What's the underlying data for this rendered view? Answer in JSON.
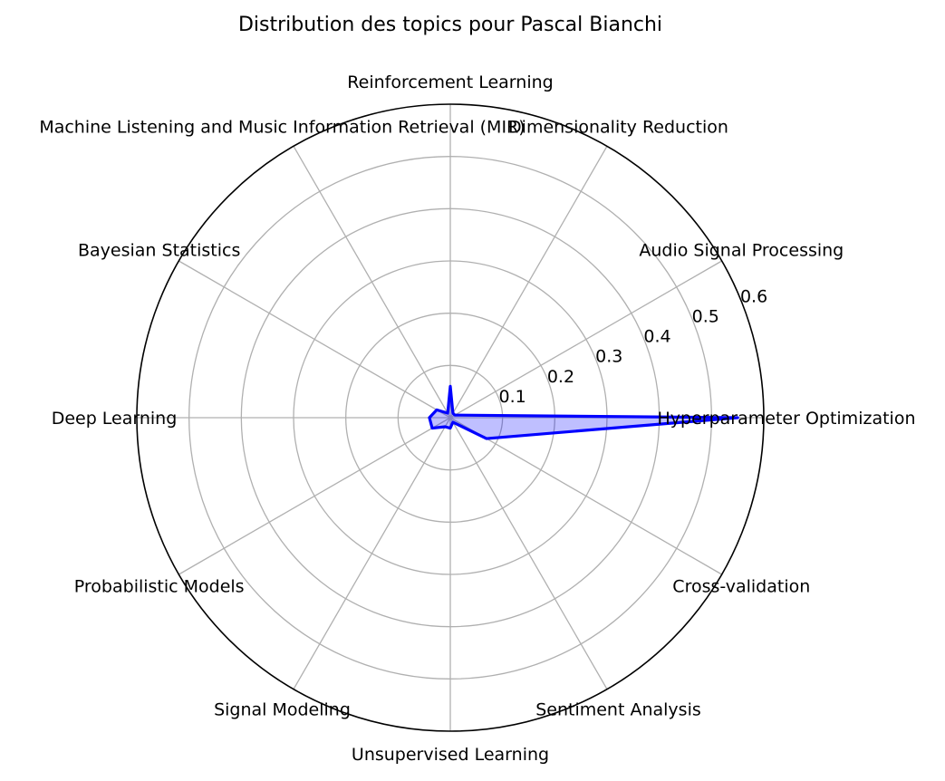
{
  "chart_data": {
    "type": "radar",
    "title": "Distribution des topics pour Pascal Bianchi",
    "categories": [
      "Hyperparameter Optimization",
      "Audio Signal Processing",
      "Dimensionality Reduction",
      "Reinforcement Learning",
      "Machine Listening and Music Information Retrieval (MIR)",
      "Bayesian Statistics",
      "Deep Learning",
      "Probabilistic Models",
      "Signal Modeling",
      "Unsupervised Learning",
      "Sentiment Analysis",
      "Cross-validation"
    ],
    "series": [
      {
        "values": [
          0.55,
          0.01,
          0.01,
          0.06,
          0.01,
          0.03,
          0.04,
          0.04,
          0.02,
          0.02,
          0.01,
          0.08
        ]
      }
    ],
    "rlim": [
      0,
      0.6
    ],
    "rticks": [
      "0.1",
      "0.2",
      "0.3",
      "0.4",
      "0.5",
      "0.6"
    ],
    "grid": true,
    "colors": {
      "line": "#0000ff",
      "fill": "#0000ff",
      "grid": "#b0b0b0",
      "frame": "#000000"
    }
  }
}
